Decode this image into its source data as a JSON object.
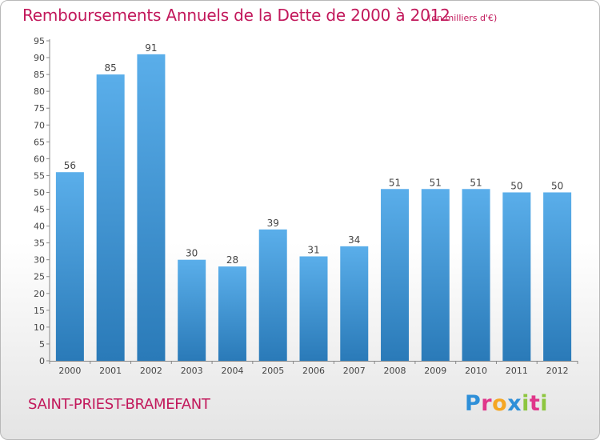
{
  "title": "Remboursements Annuels de la Dette de 2000 à 2012",
  "subtitle": "(en milliers d'€)",
  "commune": "SAINT-PRIEST-BRAMEFANT",
  "logo": {
    "letters": [
      "P",
      "r",
      "o",
      "x",
      "i",
      "t",
      "i"
    ],
    "colors": [
      "#2e8fd8",
      "#e0368a",
      "#f5a623",
      "#2e8fd8",
      "#8dc63f",
      "#e0368a",
      "#8dc63f"
    ]
  },
  "colors": {
    "bar_top": "#5aaeea",
    "bar_bottom": "#2a7ab8",
    "title": "#c2185b"
  },
  "chart_data": {
    "type": "bar",
    "categories": [
      "2000",
      "2001",
      "2002",
      "2003",
      "2004",
      "2005",
      "2006",
      "2007",
      "2008",
      "2009",
      "2010",
      "2011",
      "2012"
    ],
    "values": [
      56,
      85,
      91,
      30,
      28,
      39,
      31,
      34,
      51,
      51,
      51,
      50,
      50
    ],
    "ylim": [
      0,
      95
    ],
    "ytick_step": 5,
    "grid": false,
    "legend": "none"
  }
}
